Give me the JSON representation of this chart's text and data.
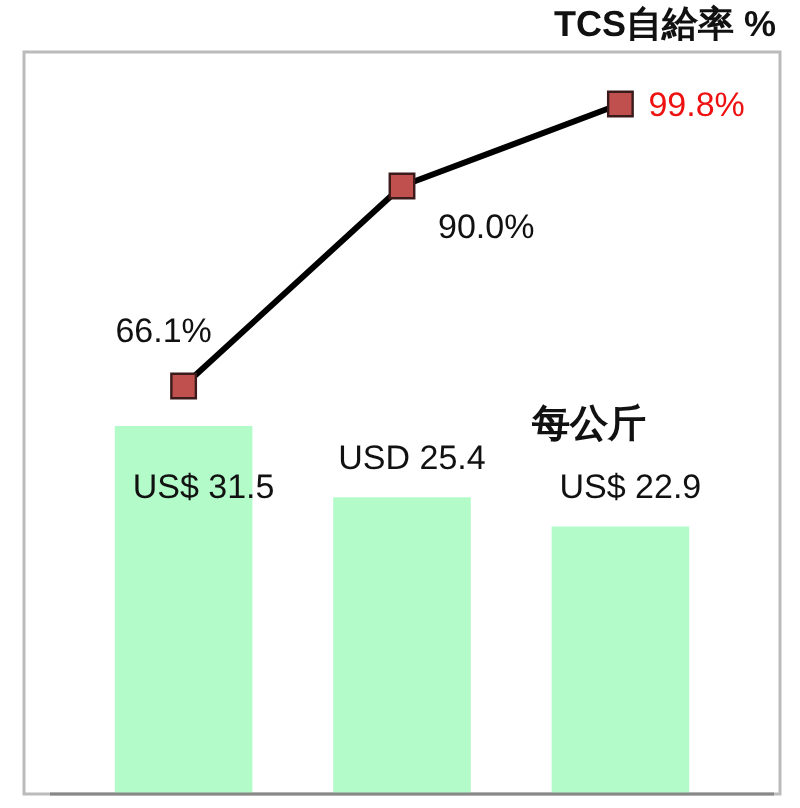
{
  "chart_data": [
    {
      "type": "line",
      "title": "TCS自給率 %",
      "categories": [
        null,
        null,
        null
      ],
      "series": [
        {
          "color": "#000000",
          "values": [
            66.1,
            90.0,
            99.8
          ],
          "value_labels": [
            "66.1%",
            "90.0%",
            "99.8%"
          ]
        }
      ],
      "marker": "square",
      "tick_labels": false
    },
    {
      "type": "bar",
      "annotations": [
        "每公斤"
      ],
      "categories": [
        null,
        null,
        null
      ],
      "series": [
        {
          "color": "#b3fcc9",
          "values": [
            31.5,
            25.4,
            22.9
          ],
          "value_labels": [
            "US$ 31.5",
            "USD 25.4",
            "US$ 22.9"
          ]
        }
      ],
      "tick_labels": false
    }
  ]
}
